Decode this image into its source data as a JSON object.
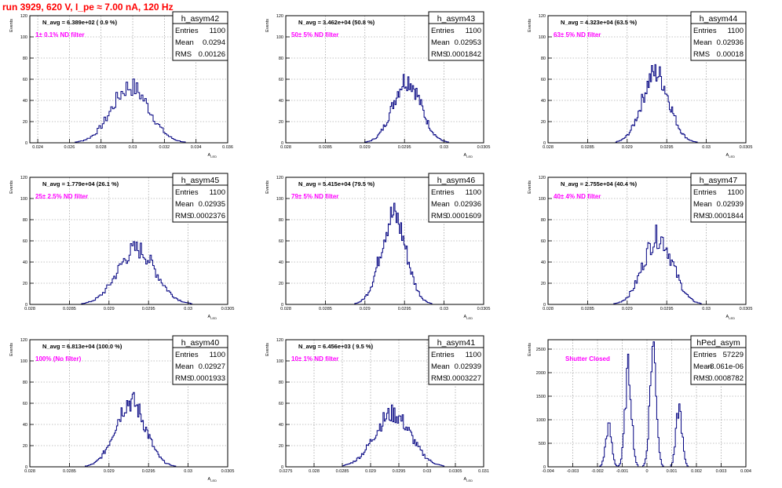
{
  "page": {
    "title": "run 3929,   620 V, I_pe ≈ 7.00 nA, 120 Hz"
  },
  "colors": {
    "histogram": "#000080",
    "annotation": "#ff00ff",
    "grid": "#888888",
    "title_red": "#ff0000"
  },
  "chart_data": [
    {
      "type": "histogram",
      "name": "h_asym42",
      "navg": "N_avg = 6.389e+02 ( 0.9 %)",
      "annotation": "1± 0.1% ND filter",
      "stats": {
        "entries": "1100",
        "mean": "0.0294",
        "rms": "0.00126"
      },
      "ylabel": "Events",
      "xlabel": "A_LED",
      "xlim": [
        0.0235,
        0.036
      ],
      "ylim": [
        0,
        120
      ],
      "xticks": [
        0.024,
        0.026,
        0.028,
        0.03,
        0.032,
        0.034,
        0.036
      ],
      "xtick_labels": [
        "0.024",
        "0.026",
        "0.028",
        "0.03",
        "0.032",
        "0.034",
        "0.036"
      ],
      "yticks": [
        0,
        20,
        40,
        60,
        80,
        100,
        120
      ],
      "peaks": [
        {
          "x": 0.02985,
          "h": 53,
          "w": 0.00118
        }
      ],
      "range": [
        0.0254,
        0.0345
      ],
      "grid": true
    },
    {
      "type": "histogram",
      "name": "h_asym43",
      "navg": "N_avg = 3.462e+04 (50.8 %)",
      "annotation": "50± 5% ND filter",
      "stats": {
        "entries": "1100",
        "mean": "0.02953",
        "rms": "0.0001842"
      },
      "ylabel": "Events",
      "xlabel": "A_LED",
      "xlim": [
        0.028,
        0.0305
      ],
      "ylim": [
        0,
        120
      ],
      "xticks": [
        0.028,
        0.0285,
        0.029,
        0.0295,
        0.03,
        0.0305
      ],
      "xtick_labels": [
        "0.028",
        "0.0285",
        "0.029",
        "0.0295",
        "0.03",
        "0.0305"
      ],
      "yticks": [
        0,
        20,
        40,
        60,
        80,
        100,
        120
      ],
      "peaks": [
        {
          "x": 0.02953,
          "h": 60,
          "w": 0.000175
        }
      ],
      "range": [
        0.02885,
        0.0301
      ],
      "grid": true
    },
    {
      "type": "histogram",
      "name": "h_asym44",
      "navg": "N_avg = 4.323e+04 (63.5 %)",
      "annotation": "63± 5% ND filter",
      "stats": {
        "entries": "1100",
        "mean": "0.02936",
        "rms": "0.00018"
      },
      "ylabel": "Events",
      "xlabel": "A_LED",
      "xlim": [
        0.028,
        0.0305
      ],
      "ylim": [
        0,
        120
      ],
      "xticks": [
        0.028,
        0.0285,
        0.029,
        0.0295,
        0.03,
        0.0305
      ],
      "xtick_labels": [
        "0.028",
        "0.0285",
        "0.029",
        "0.0295",
        "0.03",
        "0.0305"
      ],
      "yticks": [
        0,
        20,
        40,
        60,
        80,
        100,
        120
      ],
      "peaks": [
        {
          "x": 0.02936,
          "h": 66,
          "w": 0.00017
        }
      ],
      "range": [
        0.0287,
        0.0299
      ],
      "grid": true
    },
    {
      "type": "histogram",
      "name": "h_asym45",
      "navg": "N_avg = 1.779e+04 (26.1 %)",
      "annotation": "25± 2.5% ND filter",
      "stats": {
        "entries": "1100",
        "mean": "0.02935",
        "rms": "0.0002376"
      },
      "ylabel": "Events",
      "xlabel": "A_LED",
      "xlim": [
        0.028,
        0.0305
      ],
      "ylim": [
        0,
        120
      ],
      "xticks": [
        0.028,
        0.0285,
        0.029,
        0.0295,
        0.03,
        0.0305
      ],
      "xtick_labels": [
        "0.028",
        "0.0285",
        "0.029",
        "0.0295",
        "0.03",
        "0.0305"
      ],
      "yticks": [
        0,
        20,
        40,
        60,
        80,
        100,
        120
      ],
      "peaks": [
        {
          "x": 0.02935,
          "h": 52,
          "w": 0.00024
        }
      ],
      "range": [
        0.0286,
        0.0301
      ],
      "grid": true
    },
    {
      "type": "histogram",
      "name": "h_asym46",
      "navg": "N_avg = 5.415e+04 (79.5 %)",
      "annotation": "79± 5% ND filter",
      "stats": {
        "entries": "1100",
        "mean": "0.02936",
        "rms": "0.0001609"
      },
      "ylabel": "Events",
      "xlabel": "A_LED",
      "xlim": [
        0.028,
        0.0305
      ],
      "ylim": [
        0,
        120
      ],
      "xticks": [
        0.028,
        0.0285,
        0.029,
        0.0295,
        0.03,
        0.0305
      ],
      "xtick_labels": [
        "0.028",
        "0.0285",
        "0.029",
        "0.0295",
        "0.03",
        "0.0305"
      ],
      "yticks": [
        0,
        20,
        40,
        60,
        80,
        100,
        120
      ],
      "peaks": [
        {
          "x": 0.02936,
          "h": 84,
          "w": 0.00016
        }
      ],
      "range": [
        0.0288,
        0.03
      ],
      "grid": true
    },
    {
      "type": "histogram",
      "name": "h_asym47",
      "navg": "N_avg = 2.755e+04 (40.4 %)",
      "annotation": "40± 4% ND filter",
      "stats": {
        "entries": "1100",
        "mean": "0.02939",
        "rms": "0.0001844"
      },
      "ylabel": "Events",
      "xlabel": "A_LED",
      "xlim": [
        0.028,
        0.0305
      ],
      "ylim": [
        0,
        120
      ],
      "xticks": [
        0.028,
        0.0285,
        0.029,
        0.0295,
        0.03,
        0.0305
      ],
      "xtick_labels": [
        "0.028",
        "0.0285",
        "0.029",
        "0.0295",
        "0.03",
        "0.0305"
      ],
      "yticks": [
        0,
        20,
        40,
        60,
        80,
        100,
        120
      ],
      "peaks": [
        {
          "x": 0.02939,
          "h": 64,
          "w": 0.000185
        }
      ],
      "range": [
        0.0287,
        0.0301
      ],
      "grid": true
    },
    {
      "type": "histogram",
      "name": "h_asym40",
      "navg": "N_avg = 6.813e+04 (100.0 %)",
      "annotation": "100% (No filter)",
      "stats": {
        "entries": "1100",
        "mean": "0.02927",
        "rms": "0.0001933"
      },
      "ylabel": "Events",
      "xlabel": "A_LED",
      "xlim": [
        0.028,
        0.0305
      ],
      "ylim": [
        0,
        120
      ],
      "xticks": [
        0.028,
        0.0285,
        0.029,
        0.0295,
        0.03,
        0.0305
      ],
      "xtick_labels": [
        "0.028",
        "0.0285",
        "0.029",
        "0.0295",
        "0.03",
        "0.0305"
      ],
      "yticks": [
        0,
        20,
        40,
        60,
        80,
        100,
        120
      ],
      "peaks": [
        {
          "x": 0.02927,
          "h": 62,
          "w": 0.00019
        }
      ],
      "range": [
        0.0287,
        0.0299
      ],
      "grid": true
    },
    {
      "type": "histogram",
      "name": "h_asym41",
      "navg": "N_avg = 6.456e+03 ( 9.5 %)",
      "annotation": "10± 1% ND filter",
      "stats": {
        "entries": "1100",
        "mean": "0.02939",
        "rms": "0.0003227"
      },
      "ylabel": "Events",
      "xlabel": "A_LED",
      "xlim": [
        0.0275,
        0.031
      ],
      "ylim": [
        0,
        120
      ],
      "xticks": [
        0.0275,
        0.028,
        0.0285,
        0.029,
        0.0295,
        0.03,
        0.0305,
        0.031
      ],
      "xtick_labels": [
        "0.0275",
        "0.028",
        "0.0285",
        "0.029",
        "0.0295",
        "0.03",
        "0.0305",
        "0.031"
      ],
      "yticks": [
        0,
        20,
        40,
        60,
        80,
        100,
        120
      ],
      "peaks": [
        {
          "x": 0.02939,
          "h": 50,
          "w": 0.00032
        }
      ],
      "range": [
        0.0285,
        0.0303
      ],
      "grid": true
    },
    {
      "type": "histogram",
      "name": "hPed_asym",
      "navg": "",
      "annotation": "Shutter Closed",
      "stats": {
        "entries": "57229",
        "mean": "-8.061e-06",
        "rms": "0.0008782"
      },
      "ylabel": "Events",
      "xlabel": "",
      "xlim": [
        -0.004,
        0.004
      ],
      "ylim": [
        0,
        2700
      ],
      "xticks": [
        -0.004,
        -0.003,
        -0.002,
        -0.001,
        0,
        0.001,
        0.002,
        0.003,
        0.004
      ],
      "xtick_labels": [
        "-0.004",
        "-0.003",
        "-0.002",
        "-0.001",
        "0",
        "0.001",
        "0.002",
        "0.003",
        "0.004"
      ],
      "yticks": [
        0,
        500,
        1000,
        1500,
        2000,
        2500
      ],
      "peaks": [
        {
          "x": -0.00155,
          "h": 850,
          "w": 0.00012
        },
        {
          "x": -0.00075,
          "h": 2050,
          "w": 0.00013
        },
        {
          "x": 0.00025,
          "h": 2550,
          "w": 0.00013
        },
        {
          "x": 0.0013,
          "h": 1250,
          "w": 0.00012
        }
      ],
      "range": [
        -0.0021,
        0.0019
      ],
      "grid": true
    }
  ]
}
